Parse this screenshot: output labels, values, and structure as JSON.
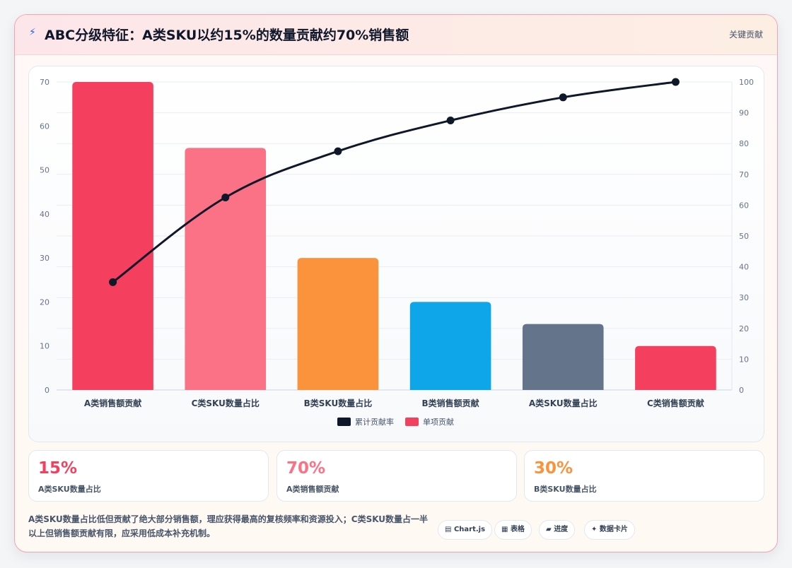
{
  "header": {
    "icon": "bolt-icon",
    "icon_glyph": "⚡",
    "title": "ABC分级特征：A类SKU以约15%的数量贡献约70%销售额",
    "tag": "关键贡献"
  },
  "chart_data": {
    "type": "bar",
    "categories": [
      "A类销售额贡献",
      "C类SKU数量占比",
      "B类SKU数量占比",
      "B类销售额贡献",
      "A类SKU数量占比",
      "C类销售额贡献"
    ],
    "series": [
      {
        "name": "单项贡献",
        "type": "bar",
        "axis": "left",
        "values": [
          70,
          55,
          30,
          20,
          15,
          10
        ],
        "colors": [
          "#f43f5e",
          "#fb7185",
          "#fb923c",
          "#0ea5e9",
          "#64748b",
          "#f43f5e"
        ]
      },
      {
        "name": "累计贡献率",
        "type": "line",
        "axis": "right",
        "values": [
          35,
          62.5,
          77.5,
          87.5,
          95,
          100
        ],
        "color": "#0f172a"
      }
    ],
    "ylim_left": [
      0,
      70
    ],
    "yticks_left": [
      0,
      10,
      20,
      30,
      40,
      50,
      60,
      70
    ],
    "ylim_right": [
      0,
      100
    ],
    "yticks_right": [
      0,
      10,
      20,
      30,
      40,
      50,
      60,
      70,
      80,
      90,
      100
    ],
    "legend": [
      "累计贡献率",
      "单项贡献"
    ],
    "legend_position": "bottom",
    "grid": true
  },
  "kpis": [
    {
      "value": "15%",
      "label": "A类SKU数量占比",
      "color": "#f43f5e"
    },
    {
      "value": "70%",
      "label": "A类销售额贡献",
      "color": "#fb7185"
    },
    {
      "value": "30%",
      "label": "B类SKU数量占比",
      "color": "#fb923c"
    }
  ],
  "note": "A类SKU数量占比低但贡献了绝大部分销售额，理应获得最高的复核频率和资源投入；C类SKU数量占一半以上但销售额贡献有限，应采用低成本补充机制。",
  "pills": [
    {
      "icon": "chart-icon",
      "glyph": "▤",
      "label": "Chart.js"
    },
    {
      "icon": "table-icon",
      "glyph": "▦",
      "label": "表格"
    },
    {
      "icon": "progress-icon",
      "glyph": "▰",
      "label": "进度"
    },
    {
      "icon": "sparkle-icon",
      "glyph": "✦",
      "label": "数据卡片"
    }
  ]
}
